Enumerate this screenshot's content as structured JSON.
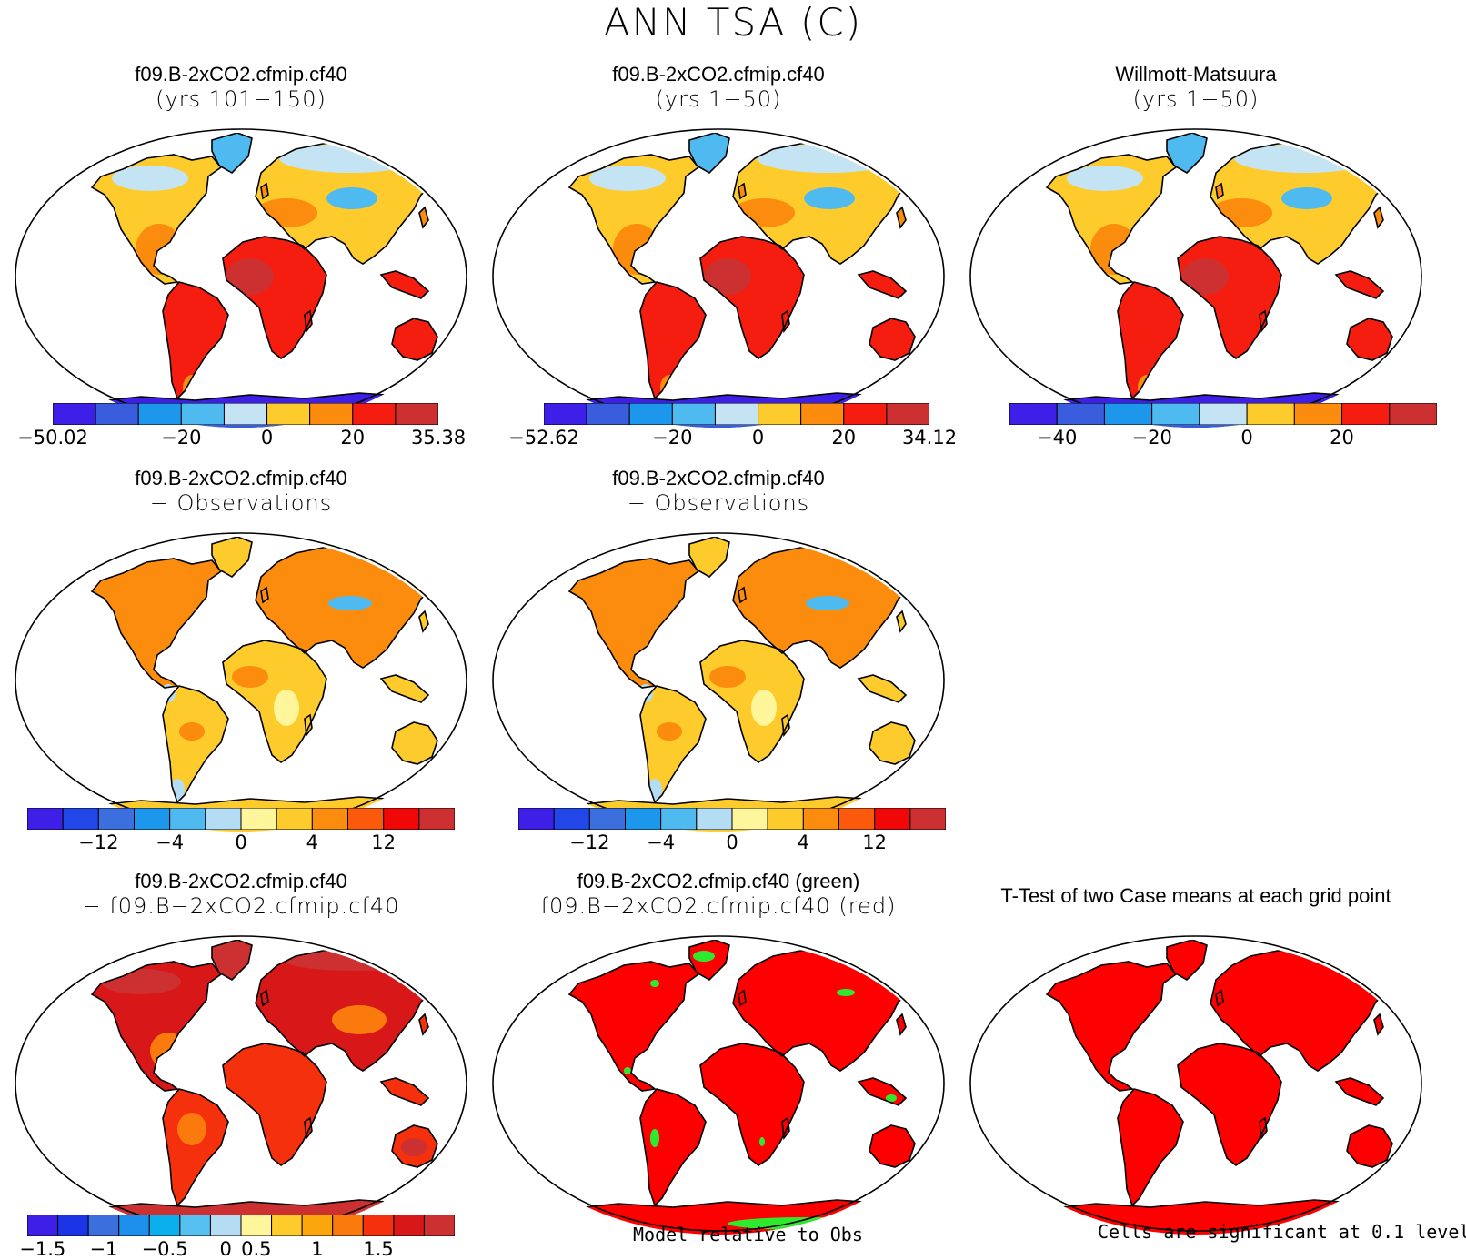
{
  "title": "ANN TSA (C)",
  "colors": {
    "land_outline": "#000000",
    "ocean": "#ffffff"
  },
  "panels": [
    {
      "id": "case1",
      "title_line1": "f09.B-2xCO2.cfmip.cf40",
      "title_line2": "(yrs 101−150)",
      "scheme": "abs"
    },
    {
      "id": "case2",
      "title_line1": "f09.B-2xCO2.cfmip.cf40",
      "title_line2": "(yrs 1−50)",
      "scheme": "abs"
    },
    {
      "id": "obs",
      "title_line1": "Willmott-Matsuura",
      "title_line2": "(yrs 1−50)",
      "scheme": "abs"
    },
    {
      "id": "diff1",
      "title_line1": "f09.B-2xCO2.cfmip.cf40",
      "title_line2": "− Observations",
      "scheme": "diff"
    },
    {
      "id": "diff2",
      "title_line1": "f09.B-2xCO2.cfmip.cf40",
      "title_line2": "− Observations",
      "scheme": "diff"
    },
    {
      "id": "casediff",
      "title_line1": "f09.B-2xCO2.cfmip.cf40",
      "title_line2": "− f09.B−2xCO2.cfmip.cf40",
      "scheme": "casediff"
    },
    {
      "id": "relative",
      "title_line1": "f09.B-2xCO2.cfmip.cf40 (green)",
      "title_line2": "f09.B−2xCO2.cfmip.cf40 (red)",
      "scheme": "relative"
    },
    {
      "id": "ttest",
      "title_single": "T-Test of two Case means at each grid point",
      "scheme": "ttest"
    }
  ],
  "colorbars": [
    {
      "id": "cb1",
      "colors": [
        "#3d1fe8",
        "#3a5ddd",
        "#1d97ec",
        "#4fbaf0",
        "#c4e4f3",
        "#fdcb2c",
        "#fb8c0d",
        "#f51d10",
        "#cd3030"
      ],
      "labels": [
        {
          "text": "−50.02",
          "at": 0
        },
        {
          "text": "−20",
          "at": 3
        },
        {
          "text": "0",
          "at": 5
        },
        {
          "text": "20",
          "at": 7
        },
        {
          "text": "35.38",
          "at": 9
        }
      ]
    },
    {
      "id": "cb2",
      "colors": [
        "#3d1fe8",
        "#3a5ddd",
        "#1d97ec",
        "#4fbaf0",
        "#c4e4f3",
        "#fdcb2c",
        "#fb8c0d",
        "#f51d10",
        "#cd3030"
      ],
      "labels": [
        {
          "text": "−52.62",
          "at": 0
        },
        {
          "text": "−20",
          "at": 3
        },
        {
          "text": "0",
          "at": 5
        },
        {
          "text": "20",
          "at": 7
        },
        {
          "text": "34.12",
          "at": 9
        }
      ]
    },
    {
      "id": "cb3",
      "colors": [
        "#3d1fe8",
        "#3a5ddd",
        "#1d97ec",
        "#4fbaf0",
        "#c4e4f3",
        "#fdcb2c",
        "#fb8c0d",
        "#f51d10",
        "#cd3030"
      ],
      "labels": [
        {
          "text": "−40",
          "at": 1
        },
        {
          "text": "−20",
          "at": 3
        },
        {
          "text": "0",
          "at": 5
        },
        {
          "text": "20",
          "at": 7
        }
      ]
    },
    {
      "id": "cb4",
      "colors": [
        "#3d1fe8",
        "#2247e8",
        "#3a6fdd",
        "#1d97ec",
        "#4fbaf0",
        "#b4dcf2",
        "#fff59b",
        "#fdcb2c",
        "#fb8c0d",
        "#fb5a0d",
        "#f00808",
        "#cd3030"
      ],
      "labels": [
        {
          "text": "−12",
          "at": 2
        },
        {
          "text": "−4",
          "at": 4
        },
        {
          "text": "0",
          "at": 6
        },
        {
          "text": "4",
          "at": 8
        },
        {
          "text": "12",
          "at": 10
        }
      ]
    },
    {
      "id": "cb5",
      "colors": [
        "#3d1fe8",
        "#2247e8",
        "#3a6fdd",
        "#1d97ec",
        "#4fbaf0",
        "#b4dcf2",
        "#fff59b",
        "#fdcb2c",
        "#fb8c0d",
        "#fb5a0d",
        "#f00808",
        "#cd3030"
      ],
      "labels": [
        {
          "text": "−12",
          "at": 2
        },
        {
          "text": "−4",
          "at": 4
        },
        {
          "text": "0",
          "at": 6
        },
        {
          "text": "4",
          "at": 8
        },
        {
          "text": "12",
          "at": 10
        }
      ]
    },
    {
      "id": "cb6",
      "colors": [
        "#3d1fe8",
        "#1b35e6",
        "#3a6fdd",
        "#1d8fec",
        "#0aafee",
        "#56c0f1",
        "#b4dcf2",
        "#fff59b",
        "#fdcb2c",
        "#fca60d",
        "#fb7a0d",
        "#f5300c",
        "#d81818",
        "#cd3030"
      ],
      "labels": [
        {
          "text": "−1.5",
          "at": 0.5
        },
        {
          "text": "−1",
          "at": 2.5
        },
        {
          "text": "−0.5",
          "at": 4.5
        },
        {
          "text": "0",
          "at": 6.5
        },
        {
          "text": "0.5",
          "at": 7.5
        },
        {
          "text": "1",
          "at": 9.5
        },
        {
          "text": "1.5",
          "at": 11.5
        }
      ]
    }
  ],
  "notes": {
    "relative": "Model relative to Obs",
    "ttest": "Cells are significant at 0.1 level"
  }
}
